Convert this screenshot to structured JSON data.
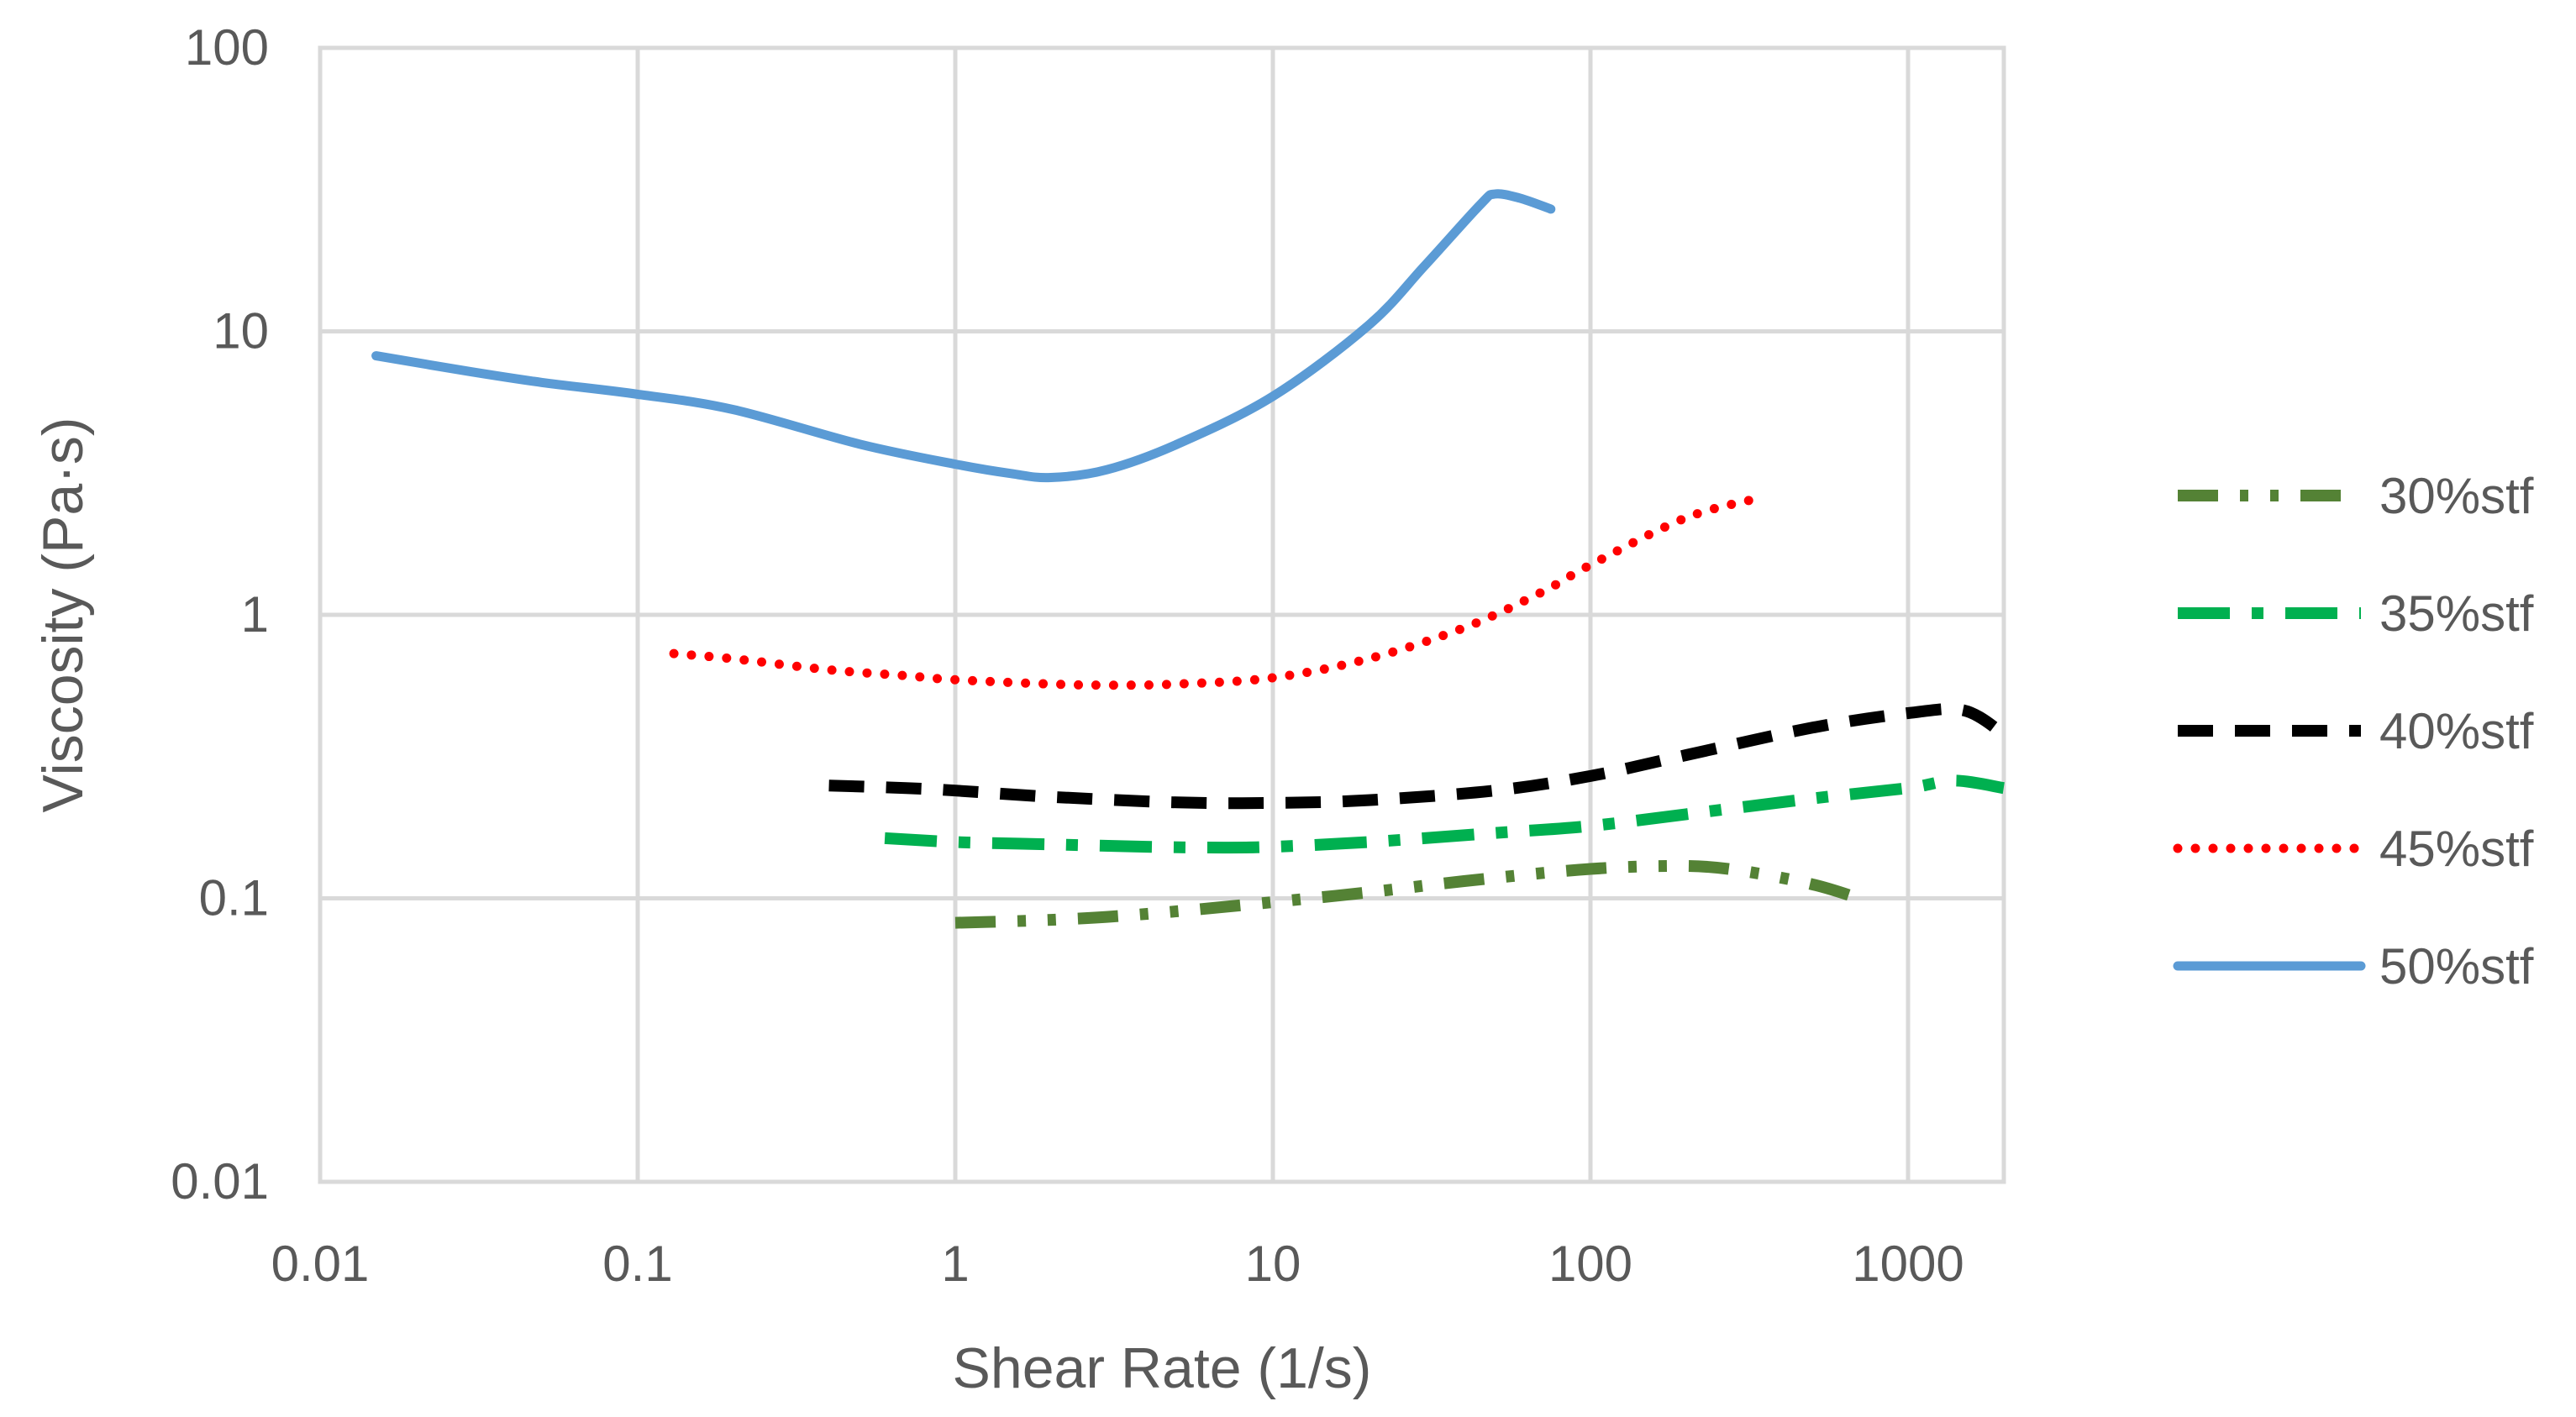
{
  "chart_data": {
    "type": "line",
    "title": "",
    "xlabel": "Shear Rate (1/s)",
    "ylabel": "Viscosity (Pa·s)",
    "xscale": "log",
    "yscale": "log",
    "xlim": [
      0.01,
      2000
    ],
    "ylim": [
      0.01,
      100
    ],
    "xticks": [
      {
        "value": 0.01,
        "label": "0.01"
      },
      {
        "value": 0.1,
        "label": "0.1"
      },
      {
        "value": 1,
        "label": "1"
      },
      {
        "value": 10,
        "label": "10"
      },
      {
        "value": 100,
        "label": "100"
      },
      {
        "value": 1000,
        "label": "1000"
      }
    ],
    "yticks": [
      {
        "value": 0.01,
        "label": "0.01"
      },
      {
        "value": 0.1,
        "label": "0.1"
      },
      {
        "value": 1,
        "label": "1"
      },
      {
        "value": 10,
        "label": "10"
      },
      {
        "value": 100,
        "label": "100"
      }
    ],
    "grid": true,
    "legend_position": "right",
    "series": [
      {
        "name": "30%stf",
        "color": "#548235",
        "style": "dash-dot-dot",
        "x": [
          1,
          1.5,
          2,
          3,
          5,
          10,
          20,
          40,
          100,
          200,
          300,
          500,
          700
        ],
        "y": [
          0.082,
          0.083,
          0.084,
          0.086,
          0.09,
          0.097,
          0.105,
          0.115,
          0.127,
          0.13,
          0.125,
          0.112,
          0.1
        ]
      },
      {
        "name": "35%stf",
        "color": "#00B050",
        "style": "dash-dot",
        "x": [
          0.6,
          1,
          2,
          4,
          7,
          10,
          20,
          50,
          100,
          200,
          500,
          1000,
          1400,
          2000
        ],
        "y": [
          0.163,
          0.158,
          0.155,
          0.152,
          0.151,
          0.152,
          0.158,
          0.17,
          0.18,
          0.198,
          0.225,
          0.245,
          0.26,
          0.245
        ]
      },
      {
        "name": "40%stf",
        "color": "#000000",
        "style": "dash",
        "x": [
          0.4,
          0.7,
          1,
          2,
          5,
          10,
          20,
          50,
          100,
          200,
          500,
          1000,
          1500,
          2000
        ],
        "y": [
          0.25,
          0.245,
          0.24,
          0.228,
          0.218,
          0.217,
          0.222,
          0.24,
          0.27,
          0.32,
          0.4,
          0.45,
          0.46,
          0.38
        ]
      },
      {
        "name": "45%stf",
        "color": "#FF0000",
        "style": "dot",
        "x": [
          0.13,
          0.2,
          0.4,
          0.7,
          1,
          2,
          3,
          5,
          10,
          20,
          40,
          70,
          100,
          200,
          350
        ],
        "y": [
          0.73,
          0.7,
          0.64,
          0.61,
          0.59,
          0.57,
          0.565,
          0.57,
          0.6,
          0.7,
          0.9,
          1.2,
          1.5,
          2.2,
          2.6
        ]
      },
      {
        "name": "50%stf",
        "color": "#5B9BD5",
        "style": "solid",
        "x": [
          0.015,
          0.03,
          0.05,
          0.1,
          0.2,
          0.5,
          1,
          1.5,
          2,
          3,
          5,
          10,
          20,
          30,
          45,
          50,
          60,
          75
        ],
        "y": [
          8.2,
          7.2,
          6.6,
          6.0,
          5.3,
          4.0,
          3.4,
          3.15,
          3.05,
          3.25,
          4.0,
          5.9,
          10.5,
          17,
          28,
          30.5,
          29.5,
          27
        ]
      }
    ]
  }
}
